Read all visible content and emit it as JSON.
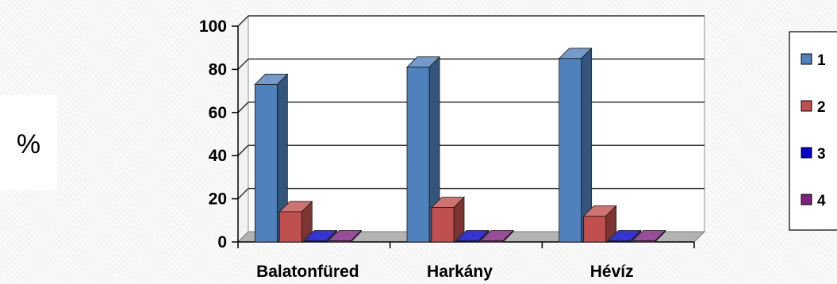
{
  "chart_data": {
    "type": "bar",
    "title": "",
    "ylabel": "%",
    "xlabel": "",
    "categories": [
      "Balatonfüred",
      "Harkány",
      "Hévíz"
    ],
    "ylim": [
      0,
      100
    ],
    "yticks": [
      0,
      20,
      40,
      60,
      80,
      100
    ],
    "grid": true,
    "legend_position": "right",
    "series": [
      {
        "name": "1",
        "color": "#4f81bd",
        "values": [
          73,
          81,
          85
        ]
      },
      {
        "name": "2",
        "color": "#c0504d",
        "values": [
          14,
          16,
          12
        ]
      },
      {
        "name": "3",
        "color": "#0000cc",
        "values": [
          0,
          0,
          0
        ]
      },
      {
        "name": "4",
        "color": "#7f1f7f",
        "values": [
          0.5,
          0,
          0
        ]
      }
    ]
  }
}
